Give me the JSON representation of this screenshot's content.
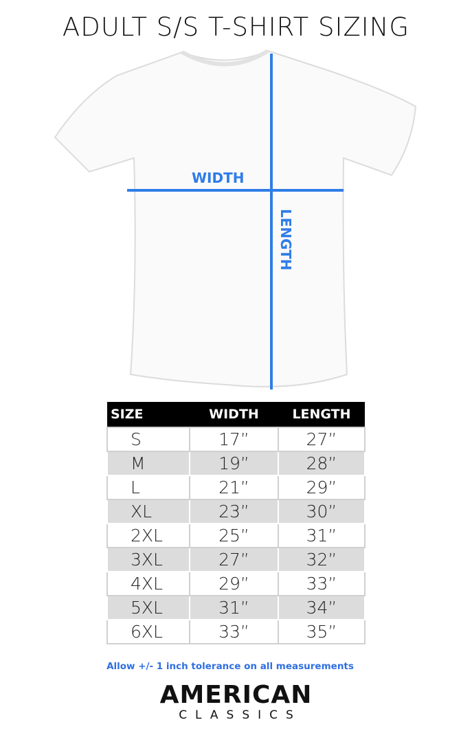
{
  "title": "ADULT S/S T-SHIRT SIZING",
  "diagram": {
    "width_label": "WIDTH",
    "length_label": "LENGTH",
    "line_color": "#2f7de8"
  },
  "table": {
    "headers": [
      "SIZE",
      "WIDTH",
      "LENGTH"
    ],
    "rows": [
      {
        "size": "S",
        "width": "17”",
        "length": "27”"
      },
      {
        "size": "M",
        "width": "19”",
        "length": "28”"
      },
      {
        "size": "L",
        "width": "21”",
        "length": "29”"
      },
      {
        "size": "XL",
        "width": "23”",
        "length": "30”"
      },
      {
        "size": "2XL",
        "width": "25”",
        "length": "31”"
      },
      {
        "size": "3XL",
        "width": "27”",
        "length": "32”"
      },
      {
        "size": "4XL",
        "width": "29”",
        "length": "33”"
      },
      {
        "size": "5XL",
        "width": "31”",
        "length": "34”"
      },
      {
        "size": "6XL",
        "width": "33”",
        "length": "35”"
      }
    ]
  },
  "note": "Allow +/- 1 inch tolerance on all measurements",
  "brand": {
    "line1": "AMERICAN",
    "line2": "CLASSICS"
  }
}
